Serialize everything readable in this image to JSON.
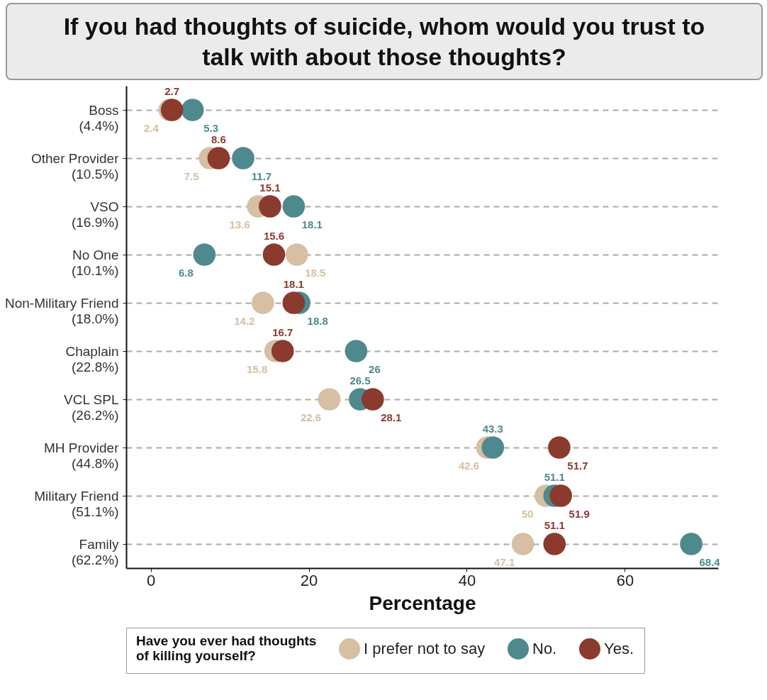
{
  "chart_data": {
    "type": "scatter",
    "title": "If you had thoughts of suicide, whom would you trust to talk with about those thoughts?",
    "xlabel": "Percentage",
    "legend_title": "Have you ever had thoughts\nof killing yourself?",
    "orientation": "horizontal",
    "categories": [
      "Boss\n(4.4%)",
      "Other Provider\n(10.5%)",
      "VSO\n(16.9%)",
      "No One\n(10.1%)",
      "Non-Military Friend\n(18.0%)",
      "Chaplain\n(22.8%)",
      "VCL SPL\n(26.2%)",
      "MH Provider\n(44.8%)",
      "Military Friend\n(51.1%)",
      "Family\n(62.2%)"
    ],
    "series": [
      {
        "name": "I prefer not to say",
        "color": "#d6bfa3",
        "values": [
          2.4,
          7.5,
          13.6,
          18.5,
          14.2,
          15.8,
          22.6,
          42.6,
          50,
          47.1
        ]
      },
      {
        "name": "No.",
        "color": "#4e8a8d",
        "values": [
          5.3,
          11.7,
          18.1,
          6.8,
          18.8,
          26,
          26.5,
          43.3,
          51.1,
          68.4
        ]
      },
      {
        "name": "Yes.",
        "color": "#8b3a2e",
        "values": [
          2.7,
          8.6,
          15.1,
          15.6,
          18.1,
          16.7,
          28.1,
          51.7,
          51.9,
          51.1
        ]
      }
    ],
    "xlim": [
      -3.1,
      71.8
    ],
    "xticks": [
      0,
      20,
      40,
      60
    ],
    "grid": "y",
    "legend": "bottom",
    "marker": "circle",
    "data_labels": true
  }
}
